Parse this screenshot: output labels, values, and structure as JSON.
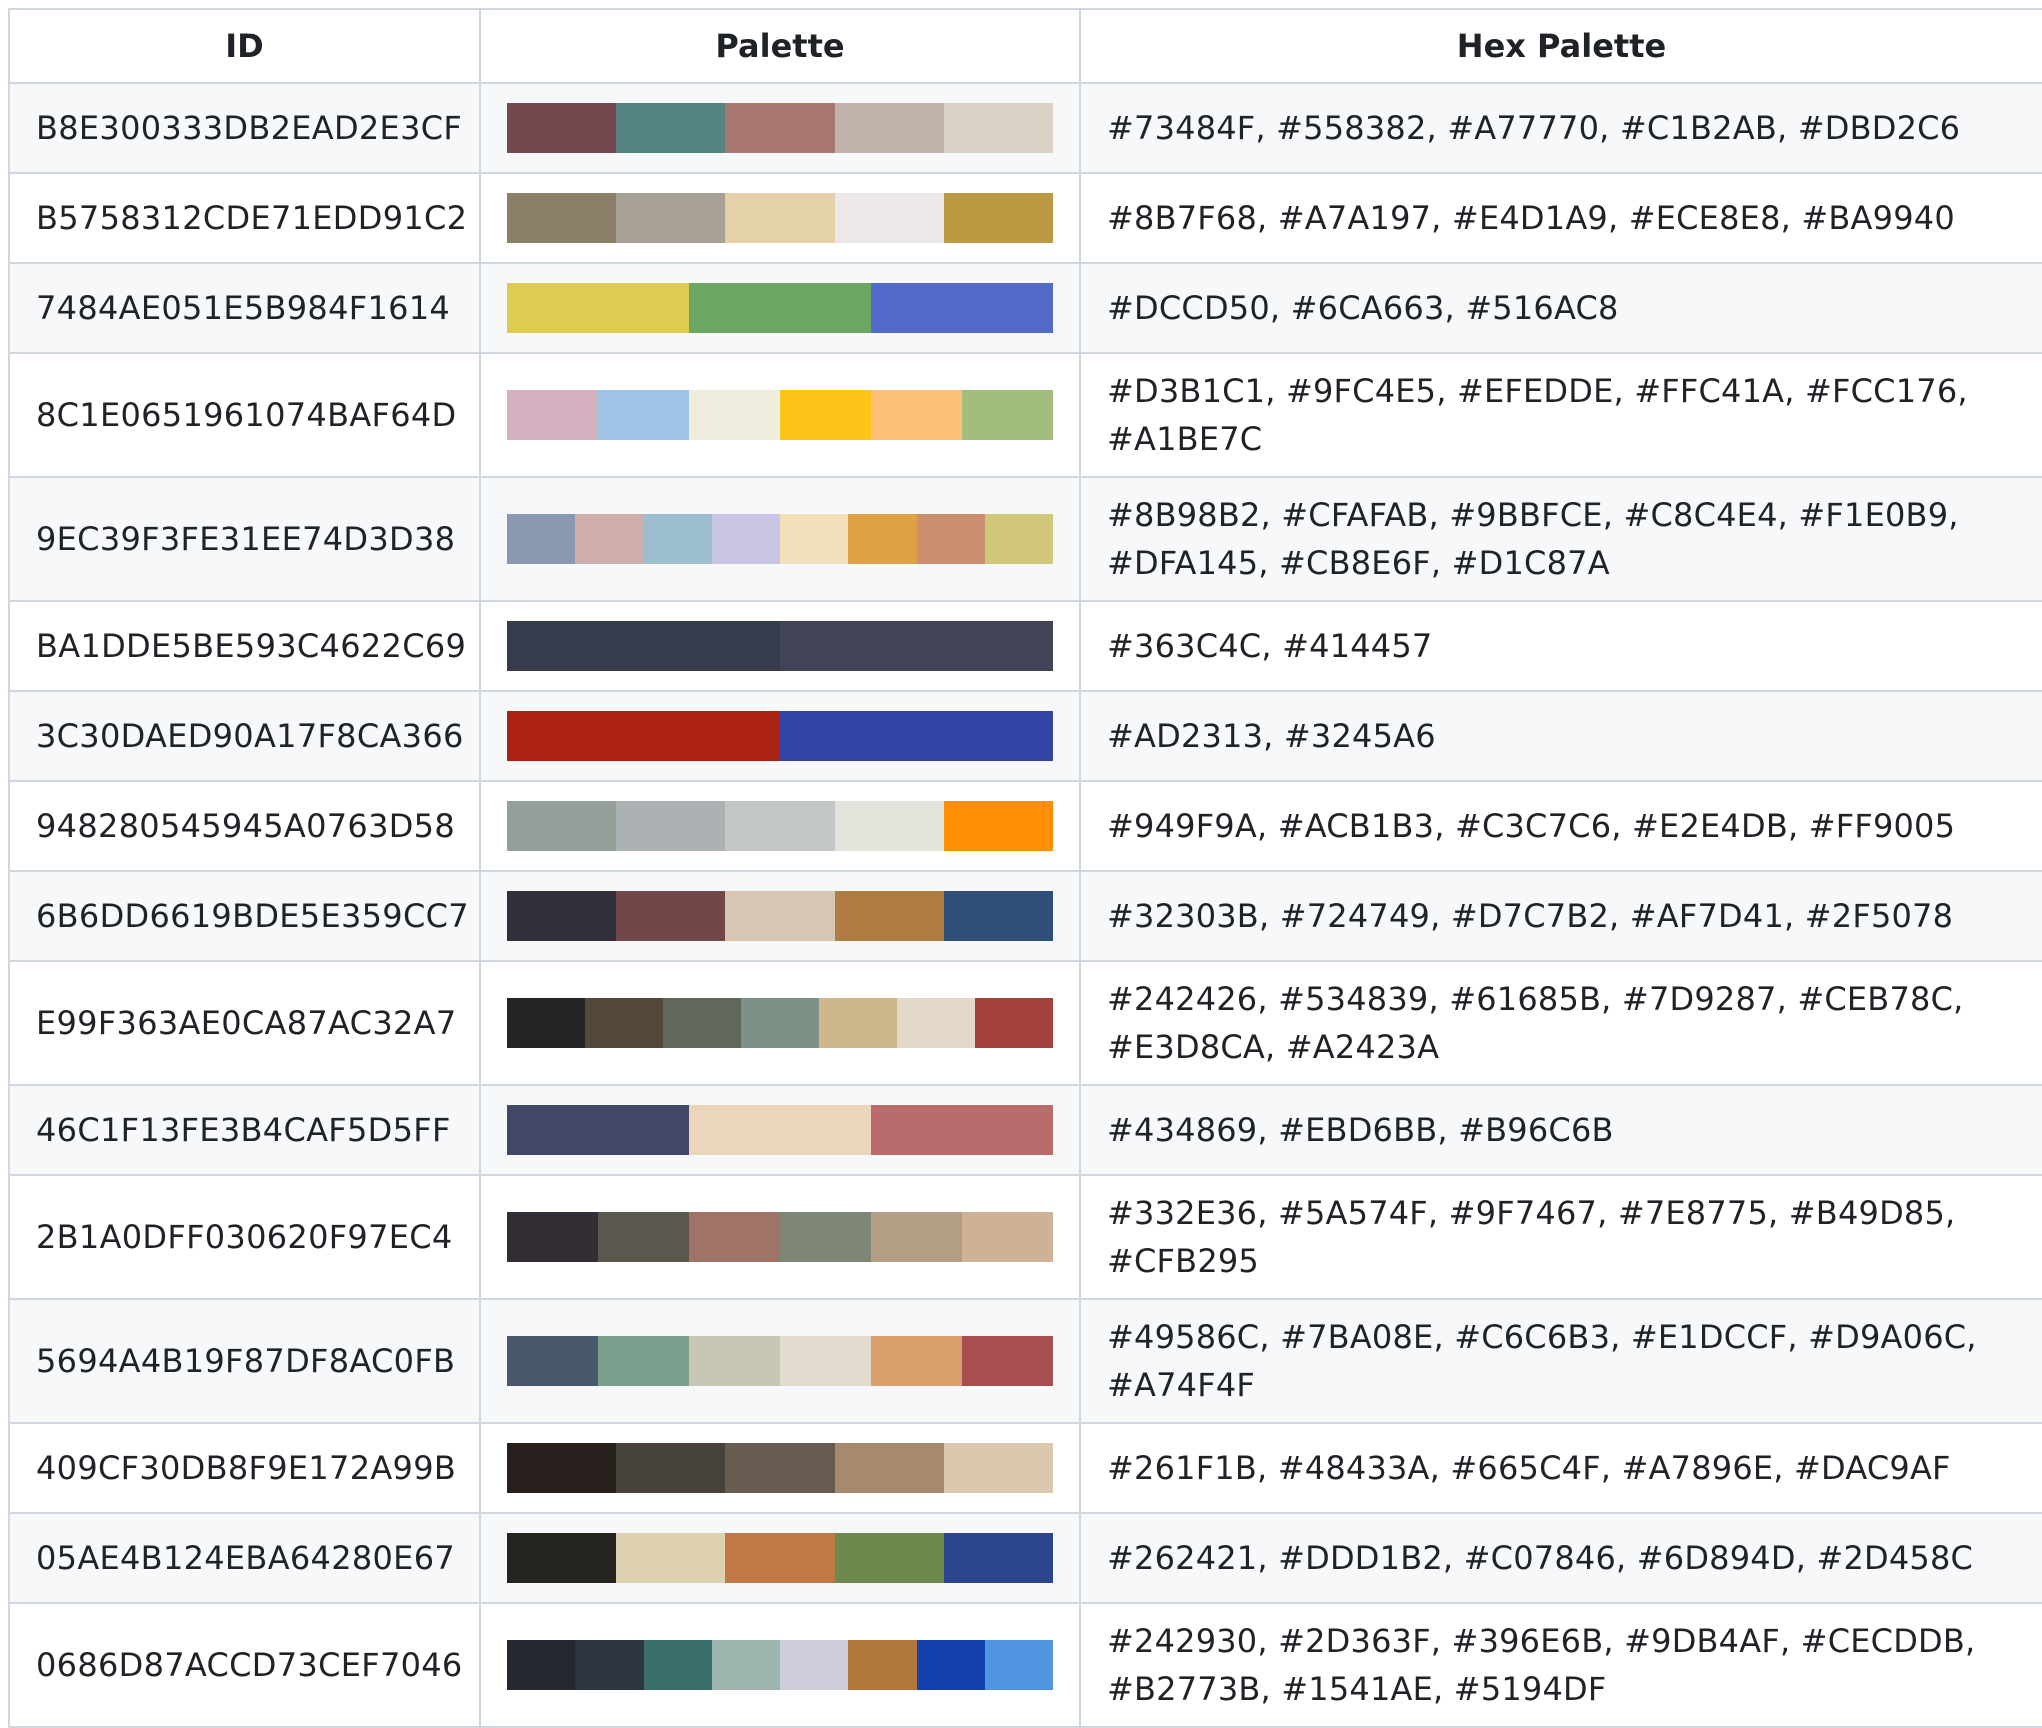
{
  "headers": {
    "id": "ID",
    "palette": "Palette",
    "hex": "Hex Palette"
  },
  "rows": [
    {
      "id": "B8E300333DB2EAD2E3CF",
      "colors": [
        "#73484F",
        "#558382",
        "#A77770",
        "#C1B2AB",
        "#DBD2C6"
      ],
      "hex": "#73484F, #558382, #A77770, #C1B2AB, #DBD2C6",
      "two_line": false
    },
    {
      "id": "B5758312CDE71EDD91C2",
      "colors": [
        "#8B7F68",
        "#A7A197",
        "#E4D1A9",
        "#ECE8E8",
        "#BA9940"
      ],
      "hex": "#8B7F68, #A7A197, #E4D1A9, #ECE8E8, #BA9940",
      "two_line": false
    },
    {
      "id": "7484AE051E5B984F1614",
      "colors": [
        "#DCCD50",
        "#6CA663",
        "#516AC8"
      ],
      "hex": "#DCCD50, #6CA663, #516AC8",
      "two_line": false
    },
    {
      "id": "8C1E0651961074BAF64D",
      "colors": [
        "#D3B1C1",
        "#9FC4E5",
        "#EFEDDE",
        "#FFC41A",
        "#FCC176",
        "#A1BE7C"
      ],
      "hex": "#D3B1C1, #9FC4E5, #EFEDDE, #FFC41A, #FCC176, #A1BE7C",
      "two_line": true
    },
    {
      "id": "9EC39F3FE31EE74D3D38",
      "colors": [
        "#8B98B2",
        "#CFAFAB",
        "#9BBFCE",
        "#C8C4E4",
        "#F1E0B9",
        "#DFA145",
        "#CB8E6F",
        "#D1C87A"
      ],
      "hex": "#8B98B2, #CFAFAB, #9BBFCE, #C8C4E4, #F1E0B9, #DFA145, #CB8E6F, #D1C87A",
      "two_line": true
    },
    {
      "id": "BA1DDE5BE593C4622C69",
      "colors": [
        "#363C4C",
        "#414457"
      ],
      "hex": "#363C4C, #414457",
      "two_line": false
    },
    {
      "id": "3C30DAED90A17F8CA366",
      "colors": [
        "#AD2313",
        "#3245A6"
      ],
      "hex": "#AD2313, #3245A6",
      "two_line": false
    },
    {
      "id": "948280545945A0763D58",
      "colors": [
        "#949F9A",
        "#ACB1B3",
        "#C3C7C6",
        "#E2E4DB",
        "#FF9005"
      ],
      "hex": "#949F9A, #ACB1B3, #C3C7C6, #E2E4DB, #FF9005",
      "two_line": false
    },
    {
      "id": "6B6DD6619BDE5E359CC7",
      "colors": [
        "#32303B",
        "#724749",
        "#D7C7B2",
        "#AF7D41",
        "#2F5078"
      ],
      "hex": "#32303B, #724749, #D7C7B2, #AF7D41, #2F5078",
      "two_line": false
    },
    {
      "id": "E99F363AE0CA87AC32A7",
      "colors": [
        "#242426",
        "#534839",
        "#61685B",
        "#7D9287",
        "#CEB78C",
        "#E3D8CA",
        "#A2423A"
      ],
      "hex": "#242426, #534839, #61685B, #7D9287, #CEB78C, #E3D8CA, #A2423A",
      "two_line": true
    },
    {
      "id": "46C1F13FE3B4CAF5D5FF",
      "colors": [
        "#434869",
        "#EBD6BB",
        "#B96C6B"
      ],
      "hex": "#434869, #EBD6BB, #B96C6B",
      "two_line": false
    },
    {
      "id": "2B1A0DFF030620F97EC4",
      "colors": [
        "#332E36",
        "#5A574F",
        "#9F7467",
        "#7E8775",
        "#B49D85",
        "#CFB295"
      ],
      "hex": "#332E36, #5A574F, #9F7467, #7E8775, #B49D85, #CFB295",
      "two_line": true
    },
    {
      "id": "5694A4B19F87DF8AC0FB",
      "colors": [
        "#49586C",
        "#7BA08E",
        "#C6C6B3",
        "#E1DCCF",
        "#D9A06C",
        "#A74F4F"
      ],
      "hex": "#49586C, #7BA08E, #C6C6B3, #E1DCCF, #D9A06C, #A74F4F",
      "two_line": true
    },
    {
      "id": "409CF30DB8F9E172A99B",
      "colors": [
        "#261F1B",
        "#48433A",
        "#665C4F",
        "#A7896E",
        "#DAC9AF"
      ],
      "hex": "#261F1B, #48433A, #665C4F, #A7896E, #DAC9AF",
      "two_line": false
    },
    {
      "id": "05AE4B124EBA64280E67",
      "colors": [
        "#262421",
        "#DDD1B2",
        "#C07846",
        "#6D894D",
        "#2D458C"
      ],
      "hex": "#262421, #DDD1B2, #C07846, #6D894D, #2D458C",
      "two_line": false
    },
    {
      "id": "0686D87ACCD73CEF7046",
      "colors": [
        "#242930",
        "#2D363F",
        "#396E6B",
        "#9DB4AF",
        "#CECDDB",
        "#B2773B",
        "#1541AE",
        "#5194DF"
      ],
      "hex": "#242930, #2D363F, #396E6B, #9DB4AF, #CECDDB, #B2773B, #1541AE, #5194DF",
      "two_line": true
    }
  ]
}
